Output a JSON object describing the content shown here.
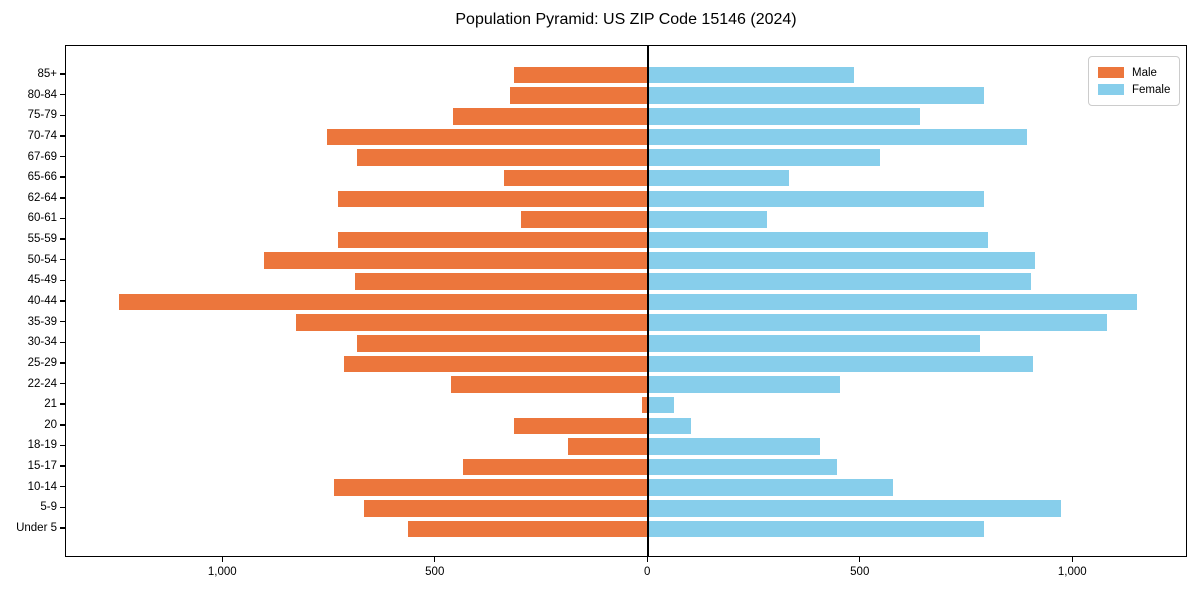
{
  "title": "Population Pyramid: US ZIP Code 15146 (2024)",
  "colors": {
    "male": "#EC763C",
    "female": "#87CEEB",
    "axis": "#000000",
    "legend_border": "#cccccc"
  },
  "chart_data": {
    "type": "bar",
    "orientation": "horizontal-diverging-pyramid",
    "title": "Population Pyramid: US ZIP Code 15146 (2024)",
    "categories": [
      "85+",
      "80-84",
      "75-79",
      "70-74",
      "67-69",
      "65-66",
      "62-64",
      "60-61",
      "55-59",
      "50-54",
      "45-49",
      "40-44",
      "35-39",
      "30-34",
      "25-29",
      "22-24",
      "21",
      "20",
      "18-19",
      "15-17",
      "10-14",
      "5-9",
      "Under 5"
    ],
    "series": [
      {
        "name": "Male",
        "side": "left",
        "color": "#EC763C",
        "values": [
          315,
          325,
          460,
          755,
          685,
          340,
          730,
          300,
          730,
          905,
          690,
          1245,
          830,
          685,
          715,
          465,
          15,
          315,
          190,
          435,
          740,
          670,
          565
        ]
      },
      {
        "name": "Female",
        "side": "right",
        "color": "#87CEEB",
        "values": [
          485,
          790,
          640,
          890,
          545,
          330,
          790,
          280,
          800,
          910,
          900,
          1150,
          1080,
          780,
          905,
          450,
          60,
          100,
          405,
          445,
          575,
          970,
          790
        ]
      }
    ],
    "xlim": [
      -1370,
      1270
    ],
    "x_ticks": [
      {
        "value": -1000,
        "label": "1,000"
      },
      {
        "value": -500,
        "label": "500"
      },
      {
        "value": 0,
        "label": "0"
      },
      {
        "value": 500,
        "label": "500"
      },
      {
        "value": 1000,
        "label": "1,000"
      }
    ],
    "legend_position": "upper right",
    "grid": false,
    "zero_line": true,
    "bar_relative_height": 0.8
  }
}
